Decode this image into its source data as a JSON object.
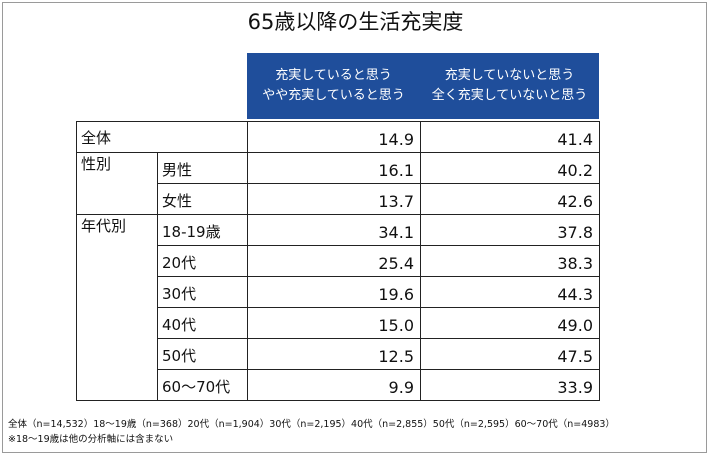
{
  "title": "65歳以降の生活充実度",
  "columns": [
    {
      "line1": "充実していると思う",
      "line2": "やや充実していると思う"
    },
    {
      "line1": "充実していないと思う",
      "line2": "全く充実していないと思う"
    }
  ],
  "rows": {
    "total": {
      "label": "全体",
      "a": "14.9",
      "b": "41.4"
    },
    "gender_group": "性別",
    "male": {
      "label": "男性",
      "a": "16.1",
      "b": "40.2"
    },
    "female": {
      "label": "女性",
      "a": "13.7",
      "b": "42.6"
    },
    "age_group": "年代別",
    "age_18_19": {
      "label": "18-19歳",
      "a": "34.1",
      "b": "37.8"
    },
    "age_20": {
      "label": "20代",
      "a": "25.4",
      "b": "38.3"
    },
    "age_30": {
      "label": "30代",
      "a": "19.6",
      "b": "44.3"
    },
    "age_40": {
      "label": "40代",
      "a": "15.0",
      "b": "49.0"
    },
    "age_50": {
      "label": "50代",
      "a": "12.5",
      "b": "47.5"
    },
    "age_60_70": {
      "label": "60〜70代",
      "a": "9.9",
      "b": "33.9"
    }
  },
  "notes": {
    "sample_sizes": "全体（n=14,532）18〜19歳（n=368）20代（n=1,904）30代（n=2,195）40代（n=2,855）50代（n=2,595）60〜70代（n=4983）",
    "caveat": "※18〜19歳は他の分析軸には含まない"
  },
  "colors": {
    "header_bg": "#1f4e9b",
    "header_text": "#ffffff",
    "border": "#222222"
  },
  "chart_data": {
    "type": "table",
    "title": "65歳以降の生活充実度",
    "columns": [
      "充実していると思う／やや充実していると思う",
      "充実していないと思う／全く充実していないと思う"
    ],
    "rows": [
      {
        "group": "",
        "label": "全体",
        "values": [
          14.9,
          41.4
        ]
      },
      {
        "group": "性別",
        "label": "男性",
        "values": [
          16.1,
          40.2
        ]
      },
      {
        "group": "性別",
        "label": "女性",
        "values": [
          13.7,
          42.6
        ]
      },
      {
        "group": "年代別",
        "label": "18-19歳",
        "values": [
          34.1,
          37.8
        ]
      },
      {
        "group": "年代別",
        "label": "20代",
        "values": [
          25.4,
          38.3
        ]
      },
      {
        "group": "年代別",
        "label": "30代",
        "values": [
          19.6,
          44.3
        ]
      },
      {
        "group": "年代別",
        "label": "40代",
        "values": [
          15.0,
          49.0
        ]
      },
      {
        "group": "年代別",
        "label": "50代",
        "values": [
          12.5,
          47.5
        ]
      },
      {
        "group": "年代別",
        "label": "60〜70代",
        "values": [
          9.9,
          33.9
        ]
      }
    ]
  }
}
